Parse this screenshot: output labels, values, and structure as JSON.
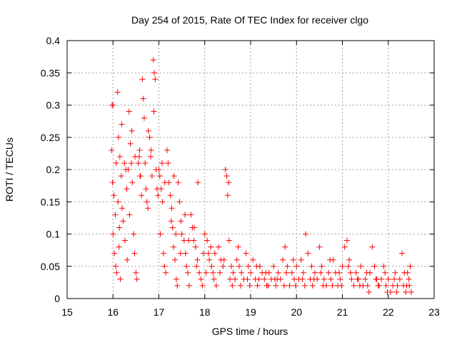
{
  "chart_data": {
    "type": "scatter",
    "title": "Day 254 of 2015, Rate Of TEC Index for receiver clgo",
    "xlabel": "GPS time / hours",
    "ylabel": "ROTI / TECUs",
    "xlim": [
      15,
      23
    ],
    "ylim": [
      0,
      0.4
    ],
    "x_ticks": [
      "15",
      "16",
      "17",
      "18",
      "19",
      "20",
      "21",
      "22",
      "23"
    ],
    "y_ticks": [
      "0",
      "0.05",
      "0.1",
      "0.15",
      "0.2",
      "0.25",
      "0.3",
      "0.35",
      "0.4"
    ],
    "grid": true,
    "marker": "plus",
    "color": "#ff0000",
    "series": [
      {
        "name": "ROTI",
        "points": [
          [
            15.98,
            0.3
          ],
          [
            16.0,
            0.3
          ],
          [
            15.97,
            0.23
          ],
          [
            15.99,
            0.18
          ],
          [
            16.02,
            0.16
          ],
          [
            16.05,
            0.13
          ],
          [
            16.0,
            0.1
          ],
          [
            16.03,
            0.07
          ],
          [
            16.06,
            0.05
          ],
          [
            16.08,
            0.04
          ],
          [
            16.1,
            0.32
          ],
          [
            16.12,
            0.25
          ],
          [
            16.15,
            0.22
          ],
          [
            16.11,
            0.15
          ],
          [
            16.14,
            0.11
          ],
          [
            16.13,
            0.08
          ],
          [
            16.16,
            0.03
          ],
          [
            16.18,
            0.19
          ],
          [
            16.2,
            0.14
          ],
          [
            16.22,
            0.12
          ],
          [
            16.25,
            0.21
          ],
          [
            16.28,
            0.2
          ],
          [
            16.3,
            0.17
          ],
          [
            16.26,
            0.09
          ],
          [
            16.31,
            0.06
          ],
          [
            16.35,
            0.29
          ],
          [
            16.38,
            0.24
          ],
          [
            16.4,
            0.21
          ],
          [
            16.42,
            0.18
          ],
          [
            16.36,
            0.13
          ],
          [
            16.45,
            0.1
          ],
          [
            16.47,
            0.07
          ],
          [
            16.5,
            0.04
          ],
          [
            16.52,
            0.03
          ],
          [
            16.48,
            0.22
          ],
          [
            16.55,
            0.21
          ],
          [
            16.58,
            0.23
          ],
          [
            16.6,
            0.19
          ],
          [
            16.62,
            0.16
          ],
          [
            16.64,
            0.34
          ],
          [
            16.66,
            0.31
          ],
          [
            16.68,
            0.28
          ],
          [
            16.7,
            0.21
          ],
          [
            16.72,
            0.17
          ],
          [
            16.74,
            0.15
          ],
          [
            16.76,
            0.14
          ],
          [
            16.8,
            0.25
          ],
          [
            16.82,
            0.22
          ],
          [
            16.85,
            0.19
          ],
          [
            16.88,
            0.37
          ],
          [
            16.9,
            0.35
          ],
          [
            16.92,
            0.34
          ],
          [
            16.89,
            0.29
          ],
          [
            16.94,
            0.2
          ],
          [
            16.96,
            0.17
          ],
          [
            16.98,
            0.16
          ],
          [
            17.0,
            0.2
          ],
          [
            17.02,
            0.19
          ],
          [
            17.05,
            0.17
          ],
          [
            17.08,
            0.15
          ],
          [
            17.03,
            0.1
          ],
          [
            17.1,
            0.07
          ],
          [
            17.12,
            0.05
          ],
          [
            17.15,
            0.04
          ],
          [
            17.18,
            0.23
          ],
          [
            17.2,
            0.21
          ],
          [
            17.22,
            0.18
          ],
          [
            17.25,
            0.16
          ],
          [
            17.28,
            0.14
          ],
          [
            17.3,
            0.11
          ],
          [
            17.32,
            0.08
          ],
          [
            17.35,
            0.06
          ],
          [
            17.38,
            0.03
          ],
          [
            17.4,
            0.02
          ],
          [
            17.33,
            0.19
          ],
          [
            17.42,
            0.18
          ],
          [
            17.45,
            0.15
          ],
          [
            17.48,
            0.12
          ],
          [
            17.5,
            0.1
          ],
          [
            17.55,
            0.09
          ],
          [
            17.58,
            0.07
          ],
          [
            17.6,
            0.05
          ],
          [
            17.63,
            0.04
          ],
          [
            17.66,
            0.02
          ],
          [
            17.7,
            0.13
          ],
          [
            17.73,
            0.11
          ],
          [
            17.76,
            0.09
          ],
          [
            17.8,
            0.08
          ],
          [
            17.84,
            0.06
          ],
          [
            17.88,
            0.04
          ],
          [
            17.92,
            0.03
          ],
          [
            17.95,
            0.02
          ],
          [
            17.85,
            0.18
          ],
          [
            18.0,
            0.1
          ],
          [
            18.05,
            0.09
          ],
          [
            18.08,
            0.07
          ],
          [
            18.1,
            0.06
          ],
          [
            18.15,
            0.05
          ],
          [
            18.18,
            0.04
          ],
          [
            18.2,
            0.03
          ],
          [
            18.25,
            0.02
          ],
          [
            18.3,
            0.08
          ],
          [
            18.35,
            0.06
          ],
          [
            18.4,
            0.05
          ],
          [
            18.45,
            0.2
          ],
          [
            18.48,
            0.19
          ],
          [
            18.5,
            0.16
          ],
          [
            18.52,
            0.18
          ],
          [
            18.55,
            0.03
          ],
          [
            18.58,
            0.05
          ],
          [
            18.62,
            0.04
          ],
          [
            18.66,
            0.03
          ],
          [
            18.7,
            0.06
          ],
          [
            18.75,
            0.05
          ],
          [
            18.8,
            0.04
          ],
          [
            18.85,
            0.03
          ],
          [
            18.9,
            0.07
          ],
          [
            18.95,
            0.05
          ],
          [
            19.0,
            0.04
          ],
          [
            19.05,
            0.06
          ],
          [
            19.1,
            0.03
          ],
          [
            19.15,
            0.02
          ],
          [
            19.2,
            0.05
          ],
          [
            19.25,
            0.04
          ],
          [
            19.3,
            0.03
          ],
          [
            19.35,
            0.02
          ],
          [
            19.4,
            0.04
          ],
          [
            19.45,
            0.03
          ],
          [
            19.5,
            0.05
          ],
          [
            19.55,
            0.02
          ],
          [
            19.6,
            0.04
          ],
          [
            19.65,
            0.03
          ],
          [
            19.7,
            0.06
          ],
          [
            19.75,
            0.08
          ],
          [
            19.8,
            0.05
          ],
          [
            19.85,
            0.02
          ],
          [
            19.9,
            0.04
          ],
          [
            19.95,
            0.03
          ],
          [
            20.0,
            0.05
          ],
          [
            20.05,
            0.03
          ],
          [
            20.1,
            0.06
          ],
          [
            20.15,
            0.04
          ],
          [
            20.2,
            0.1
          ],
          [
            20.25,
            0.07
          ],
          [
            20.3,
            0.03
          ],
          [
            20.35,
            0.02
          ],
          [
            20.4,
            0.04
          ],
          [
            20.45,
            0.03
          ],
          [
            20.5,
            0.08
          ],
          [
            20.55,
            0.05
          ],
          [
            20.6,
            0.03
          ],
          [
            20.65,
            0.02
          ],
          [
            20.7,
            0.04
          ],
          [
            20.75,
            0.03
          ],
          [
            20.8,
            0.06
          ],
          [
            20.85,
            0.04
          ],
          [
            20.9,
            0.02
          ],
          [
            20.95,
            0.03
          ],
          [
            21.0,
            0.05
          ],
          [
            21.05,
            0.08
          ],
          [
            21.1,
            0.09
          ],
          [
            21.15,
            0.06
          ],
          [
            21.2,
            0.03
          ],
          [
            21.25,
            0.02
          ],
          [
            21.3,
            0.04
          ],
          [
            21.35,
            0.03
          ],
          [
            21.4,
            0.05
          ],
          [
            21.45,
            0.02
          ],
          [
            21.5,
            0.03
          ],
          [
            21.55,
            0.02
          ],
          [
            21.6,
            0.04
          ],
          [
            21.65,
            0.08
          ],
          [
            21.7,
            0.05
          ],
          [
            21.75,
            0.03
          ],
          [
            21.8,
            0.02
          ],
          [
            21.85,
            0.03
          ],
          [
            21.9,
            0.05
          ],
          [
            21.95,
            0.02
          ],
          [
            22.0,
            0.03
          ],
          [
            22.05,
            0.01
          ],
          [
            22.1,
            0.02
          ],
          [
            22.15,
            0.04
          ],
          [
            22.2,
            0.02
          ],
          [
            22.25,
            0.03
          ],
          [
            22.3,
            0.07
          ],
          [
            22.35,
            0.04
          ],
          [
            22.4,
            0.02
          ],
          [
            22.45,
            0.03
          ],
          [
            22.48,
            0.05
          ],
          [
            22.5,
            0.01
          ],
          [
            16.07,
            0.21
          ],
          [
            16.33,
            0.2
          ],
          [
            16.57,
            0.22
          ],
          [
            16.77,
            0.26
          ],
          [
            17.07,
            0.21
          ],
          [
            17.27,
            0.12
          ],
          [
            17.47,
            0.07
          ],
          [
            17.65,
            0.09
          ],
          [
            17.82,
            0.05
          ],
          [
            18.03,
            0.04
          ],
          [
            18.22,
            0.07
          ],
          [
            18.42,
            0.06
          ],
          [
            18.6,
            0.02
          ],
          [
            18.78,
            0.02
          ],
          [
            18.98,
            0.02
          ],
          [
            19.18,
            0.03
          ],
          [
            19.38,
            0.02
          ],
          [
            19.58,
            0.03
          ],
          [
            19.78,
            0.04
          ],
          [
            19.98,
            0.02
          ],
          [
            20.18,
            0.02
          ],
          [
            20.38,
            0.03
          ],
          [
            20.58,
            0.02
          ],
          [
            20.78,
            0.02
          ],
          [
            20.98,
            0.02
          ],
          [
            21.18,
            0.04
          ],
          [
            21.38,
            0.02
          ],
          [
            21.58,
            0.01
          ],
          [
            21.78,
            0.02
          ],
          [
            21.98,
            0.01
          ],
          [
            22.18,
            0.01
          ],
          [
            22.38,
            0.01
          ],
          [
            22.42,
            0.04
          ],
          [
            16.19,
            0.27
          ],
          [
            16.41,
            0.26
          ],
          [
            16.59,
            0.19
          ],
          [
            16.83,
            0.23
          ],
          [
            17.13,
            0.18
          ],
          [
            17.37,
            0.1
          ],
          [
            17.57,
            0.13
          ],
          [
            17.77,
            0.11
          ],
          [
            17.97,
            0.07
          ],
          [
            18.13,
            0.08
          ],
          [
            18.33,
            0.04
          ],
          [
            18.53,
            0.09
          ],
          [
            18.73,
            0.08
          ],
          [
            18.93,
            0.03
          ],
          [
            19.13,
            0.05
          ],
          [
            19.33,
            0.04
          ],
          [
            19.53,
            0.03
          ],
          [
            19.73,
            0.02
          ],
          [
            19.93,
            0.06
          ],
          [
            20.13,
            0.03
          ],
          [
            20.33,
            0.05
          ],
          [
            20.53,
            0.04
          ],
          [
            20.73,
            0.06
          ],
          [
            20.93,
            0.04
          ],
          [
            21.13,
            0.05
          ],
          [
            21.33,
            0.03
          ],
          [
            21.53,
            0.04
          ],
          [
            21.73,
            0.03
          ],
          [
            21.93,
            0.04
          ],
          [
            22.13,
            0.03
          ],
          [
            22.33,
            0.02
          ],
          [
            22.46,
            0.02
          ]
        ]
      }
    ]
  }
}
